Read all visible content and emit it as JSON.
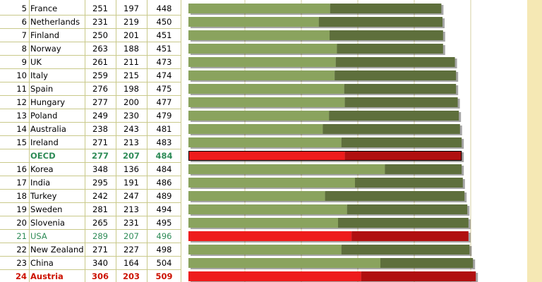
{
  "chart_data": {
    "type": "bar",
    "stacked": true,
    "orientation": "horizontal",
    "columns": [
      "rank",
      "country",
      "value_1",
      "value_2",
      "total"
    ],
    "colors": {
      "segment_1": "#8aa35e",
      "segment_2": "#5e6f3c",
      "highlight_segment_1": "#ee1c1c",
      "highlight_segment_2": "#b01010",
      "plot_background": "#f5e8b4",
      "oecd_text": "#2e8b57",
      "usa_text": "#2e8b57",
      "austria_text": "#cc1100"
    },
    "xlim": [
      0,
      600
    ],
    "rows": [
      {
        "rank": "5",
        "country": "France",
        "v1": 251,
        "v2": 197,
        "total": 448,
        "style": "normal"
      },
      {
        "rank": "6",
        "country": "Netherlands",
        "v1": 231,
        "v2": 219,
        "total": 450,
        "style": "normal"
      },
      {
        "rank": "7",
        "country": "Finland",
        "v1": 250,
        "v2": 201,
        "total": 451,
        "style": "normal"
      },
      {
        "rank": "8",
        "country": "Norway",
        "v1": 263,
        "v2": 188,
        "total": 451,
        "style": "normal"
      },
      {
        "rank": "9",
        "country": "UK",
        "v1": 261,
        "v2": 211,
        "total": 473,
        "style": "normal"
      },
      {
        "rank": "10",
        "country": "Italy",
        "v1": 259,
        "v2": 215,
        "total": 474,
        "style": "normal"
      },
      {
        "rank": "11",
        "country": "Spain",
        "v1": 276,
        "v2": 198,
        "total": 475,
        "style": "normal"
      },
      {
        "rank": "12",
        "country": "Hungary",
        "v1": 277,
        "v2": 200,
        "total": 477,
        "style": "normal"
      },
      {
        "rank": "13",
        "country": "Poland",
        "v1": 249,
        "v2": 230,
        "total": 479,
        "style": "normal"
      },
      {
        "rank": "14",
        "country": "Australia",
        "v1": 238,
        "v2": 243,
        "total": 481,
        "style": "normal"
      },
      {
        "rank": "15",
        "country": "Ireland",
        "v1": 271,
        "v2": 213,
        "total": 483,
        "style": "normal"
      },
      {
        "rank": "",
        "country": "OECD",
        "v1": 277,
        "v2": 207,
        "total": 484,
        "style": "oecd"
      },
      {
        "rank": "16",
        "country": "Korea",
        "v1": 348,
        "v2": 136,
        "total": 484,
        "style": "normal"
      },
      {
        "rank": "17",
        "country": "India",
        "v1": 295,
        "v2": 191,
        "total": 486,
        "style": "normal"
      },
      {
        "rank": "18",
        "country": "Turkey",
        "v1": 242,
        "v2": 247,
        "total": 489,
        "style": "normal"
      },
      {
        "rank": "19",
        "country": "Sweden",
        "v1": 281,
        "v2": 213,
        "total": 494,
        "style": "normal"
      },
      {
        "rank": "20",
        "country": "Slovenia",
        "v1": 265,
        "v2": 231,
        "total": 495,
        "style": "normal"
      },
      {
        "rank": "21",
        "country": "USA",
        "v1": 289,
        "v2": 207,
        "total": 496,
        "style": "usa"
      },
      {
        "rank": "22",
        "country": "New Zealand",
        "v1": 271,
        "v2": 227,
        "total": 498,
        "style": "normal"
      },
      {
        "rank": "23",
        "country": "China",
        "v1": 340,
        "v2": 164,
        "total": 504,
        "style": "normal"
      },
      {
        "rank": "24",
        "country": "Austria",
        "v1": 306,
        "v2": 203,
        "total": 509,
        "style": "austria"
      }
    ]
  }
}
